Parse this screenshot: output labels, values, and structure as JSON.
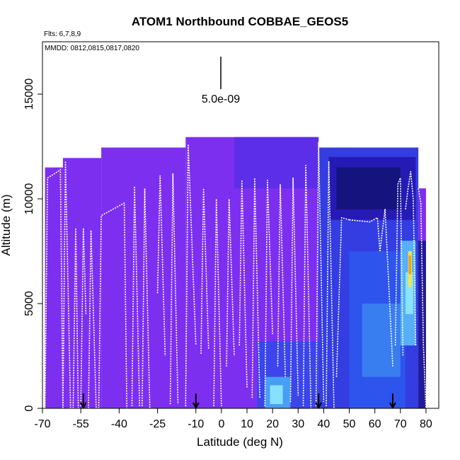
{
  "chart_data": {
    "type": "heatmap",
    "title": "ATOM1 Northbound COBBAE_GEOS5",
    "annotations": {
      "flights": "Flts: 6,7,8,9",
      "dates": "MMDD: 0812,0815,0817,0820",
      "scale_label": "5.0e-09"
    },
    "xlabel": "Latitude (deg N)",
    "ylabel": "Altitude (m)",
    "xlim": [
      -70,
      85
    ],
    "ylim": [
      0,
      17500
    ],
    "xticks": [
      -70,
      -55,
      -40,
      -25,
      -10,
      0,
      10,
      20,
      30,
      40,
      50,
      60,
      70,
      80
    ],
    "xtick_labels": [
      "-70",
      "-55",
      "-40",
      "-25",
      "-10",
      "0",
      "10",
      "20",
      "30",
      "40",
      "50",
      "60",
      "70",
      "80"
    ],
    "yticks": [
      0,
      5000,
      10000,
      15000
    ],
    "ytick_labels": [
      "0",
      "5000",
      "10000",
      "15000"
    ],
    "colors": {
      "background_purple": "#7d2ff0",
      "blue": "#2d3fe0",
      "dark_navy": "#14147a",
      "cyan": "#8ee6ff",
      "yellow": "#f3e54a",
      "orange": "#f39a1d",
      "track": "#ffffff",
      "arrow": "#000000"
    },
    "curtain_tops": [
      {
        "x0": -69,
        "x1": -62,
        "top": 11500
      },
      {
        "x0": -62,
        "x1": -47,
        "top": 11950
      },
      {
        "x0": -47,
        "x1": -14,
        "top": 12450
      },
      {
        "x0": -14,
        "x1": 38,
        "top": 12950
      },
      {
        "x0": 38,
        "x1": 77,
        "top": 12450
      },
      {
        "x0": 77,
        "x1": 80,
        "top": 10500
      }
    ],
    "arrow_latitudes": [
      -54,
      -10,
      38,
      67
    ],
    "flight_profiles": [
      {
        "lat": [
          -69,
          -68,
          -64,
          -63,
          -62
        ],
        "alt": [
          0,
          11000,
          11300,
          11400,
          0
        ]
      },
      {
        "lat": [
          -62,
          -61,
          -59
        ],
        "alt": [
          0,
          11800,
          0
        ]
      },
      {
        "lat": [
          -58,
          -57,
          -56
        ],
        "alt": [
          0,
          8600,
          0
        ]
      },
      {
        "lat": [
          -55,
          -54,
          -53
        ],
        "alt": [
          100,
          8600,
          4500
        ]
      },
      {
        "lat": [
          -52,
          -51,
          -49
        ],
        "alt": [
          0,
          8500,
          0
        ]
      },
      {
        "lat": [
          -48,
          -47,
          -38,
          -37
        ],
        "alt": [
          0,
          9200,
          9800,
          0
        ]
      },
      {
        "lat": [
          -35,
          -34,
          -32
        ],
        "alt": [
          100,
          10600,
          100
        ]
      },
      {
        "lat": [
          -31,
          -30,
          -28
        ],
        "alt": [
          100,
          10500,
          0
        ]
      },
      {
        "lat": [
          -25,
          -24,
          -22
        ],
        "alt": [
          5500,
          11100,
          2500
        ]
      },
      {
        "lat": [
          -20,
          -19,
          -17
        ],
        "alt": [
          200,
          11200,
          200
        ]
      },
      {
        "lat": [
          -14,
          -13,
          -10
        ],
        "alt": [
          100,
          12600,
          3000
        ]
      },
      {
        "lat": [
          -8,
          -7,
          -5
        ],
        "alt": [
          2600,
          10500,
          2800
        ]
      },
      {
        "lat": [
          -3,
          -2,
          0
        ],
        "alt": [
          100,
          10000,
          100
        ]
      },
      {
        "lat": [
          2,
          3,
          5
        ],
        "alt": [
          2000,
          10000,
          2500
        ]
      },
      {
        "lat": [
          7,
          8,
          10
        ],
        "alt": [
          3000,
          10900,
          1000
        ]
      },
      {
        "lat": [
          12,
          13,
          15
        ],
        "alt": [
          500,
          11000,
          500
        ]
      },
      {
        "lat": [
          17,
          18,
          20
        ],
        "alt": [
          100,
          10900,
          3500
        ]
      },
      {
        "lat": [
          22,
          23,
          25
        ],
        "alt": [
          2000,
          10700,
          1500
        ]
      },
      {
        "lat": [
          27,
          28,
          30
        ],
        "alt": [
          300,
          11000,
          600
        ]
      },
      {
        "lat": [
          32,
          33,
          35
        ],
        "alt": [
          100,
          11600,
          0
        ]
      },
      {
        "lat": [
          37,
          38,
          40
        ],
        "alt": [
          100,
          12700,
          300
        ]
      },
      {
        "lat": [
          41,
          42,
          44
        ],
        "alt": [
          100,
          11800,
          0
        ]
      },
      {
        "lat": [
          45,
          47,
          50
        ],
        "alt": [
          1500,
          9100,
          9000
        ]
      },
      {
        "lat": [
          50,
          58,
          61,
          62
        ],
        "alt": [
          9000,
          8900,
          9100,
          7500
        ]
      },
      {
        "lat": [
          62,
          64,
          67
        ],
        "alt": [
          7500,
          9500,
          2000
        ]
      },
      {
        "lat": [
          68,
          69,
          70,
          71
        ],
        "alt": [
          3000,
          10700,
          11000,
          2500
        ]
      },
      {
        "lat": [
          72,
          73,
          74,
          75,
          76
        ],
        "alt": [
          9500,
          10500,
          11300,
          10000,
          3000
        ]
      },
      {
        "lat": [
          77,
          78,
          79,
          80
        ],
        "alt": [
          10500,
          9800,
          3000,
          0
        ]
      }
    ],
    "grid": false,
    "legend": "none"
  }
}
